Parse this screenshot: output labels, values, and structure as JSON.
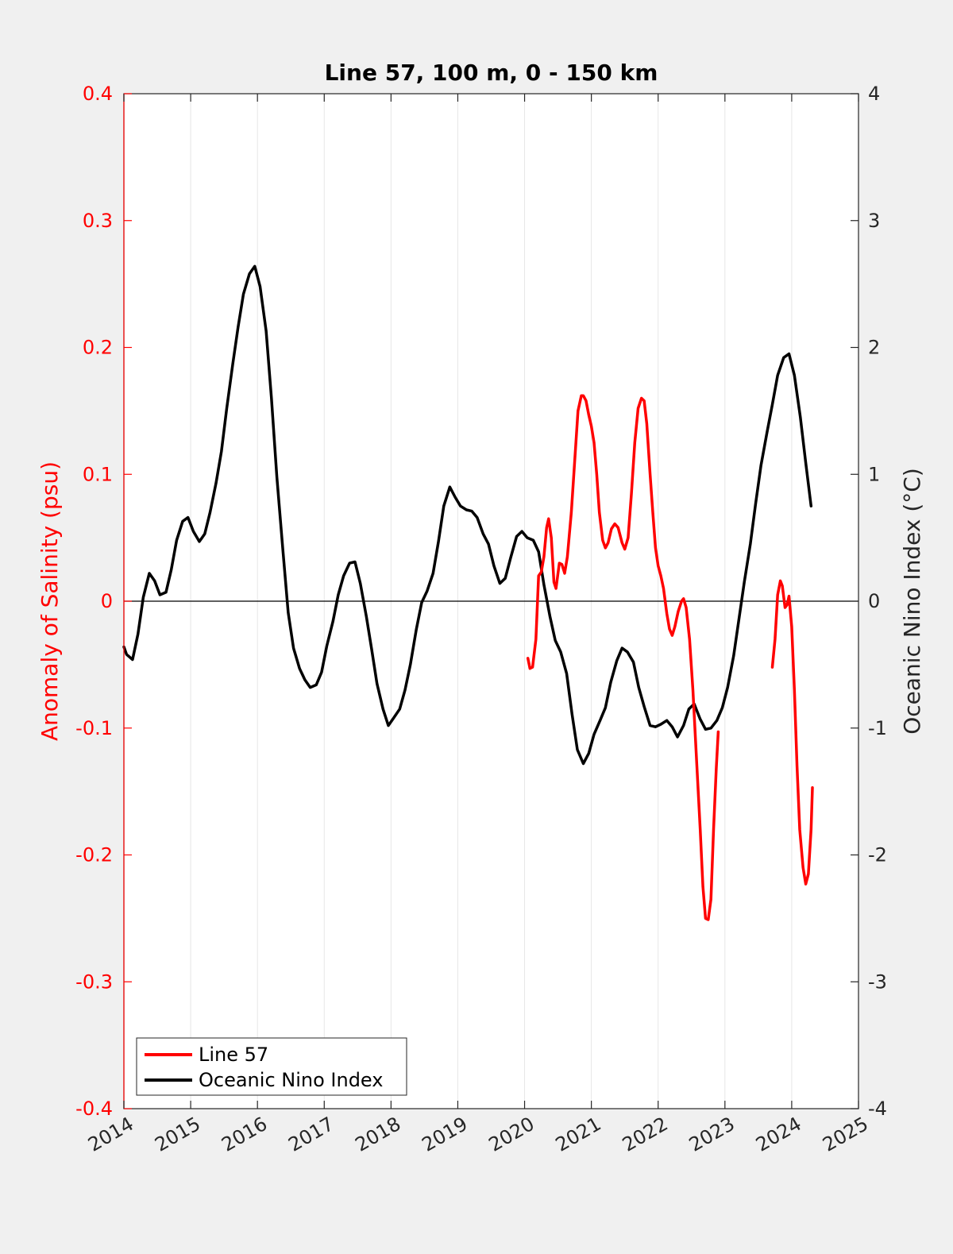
{
  "chart_data": {
    "type": "line",
    "title": "Line 57, 100 m, 0 - 150 km",
    "xlabel": "",
    "ylabel_left": "Anomaly of Salinity (psu)",
    "ylabel_right": "Oceanic Nino Index (°C)",
    "xlim": [
      2014,
      2025
    ],
    "ylim_left": [
      -0.4,
      0.4
    ],
    "ylim_right": [
      -4,
      4
    ],
    "x_ticks": [
      "2014",
      "2015",
      "2016",
      "2017",
      "2018",
      "2019",
      "2020",
      "2021",
      "2022",
      "2023",
      "2024",
      "2025"
    ],
    "y_left_ticks": [
      "0.4",
      "0.3",
      "0.2",
      "0.1",
      "0",
      "-0.1",
      "-0.2",
      "-0.3",
      "-0.4"
    ],
    "y_right_ticks": [
      "4",
      "3",
      "2",
      "1",
      "0",
      "-1",
      "-2",
      "-3",
      "-4"
    ],
    "grid": "vertical",
    "zero_line": true,
    "legend_position": "bottom-left",
    "colors": {
      "salinity": "#ff0000",
      "oni": "#000000",
      "left_axis": "#ff0000"
    },
    "series": [
      {
        "name": "Line 57",
        "axis": "left",
        "color": "#ff0000",
        "segments": [
          [
            [
              2020.05,
              -0.045
            ],
            [
              2020.08,
              -0.053
            ],
            [
              2020.12,
              -0.052
            ],
            [
              2020.17,
              -0.03
            ],
            [
              2020.21,
              0.02
            ],
            [
              2020.25,
              0.023
            ],
            [
              2020.29,
              0.035
            ],
            [
              2020.33,
              0.058
            ],
            [
              2020.36,
              0.065
            ],
            [
              2020.4,
              0.05
            ],
            [
              2020.44,
              0.015
            ],
            [
              2020.47,
              0.01
            ],
            [
              2020.52,
              0.03
            ],
            [
              2020.56,
              0.029
            ],
            [
              2020.6,
              0.022
            ],
            [
              2020.64,
              0.035
            ],
            [
              2020.7,
              0.07
            ],
            [
              2020.75,
              0.11
            ],
            [
              2020.8,
              0.15
            ],
            [
              2020.85,
              0.162
            ],
            [
              2020.88,
              0.162
            ],
            [
              2020.92,
              0.158
            ],
            [
              2020.96,
              0.147
            ],
            [
              2021.0,
              0.138
            ],
            [
              2021.04,
              0.125
            ],
            [
              2021.08,
              0.1
            ],
            [
              2021.12,
              0.07
            ],
            [
              2021.17,
              0.048
            ],
            [
              2021.21,
              0.042
            ],
            [
              2021.25,
              0.046
            ],
            [
              2021.3,
              0.057
            ],
            [
              2021.35,
              0.061
            ],
            [
              2021.4,
              0.058
            ],
            [
              2021.46,
              0.046
            ],
            [
              2021.5,
              0.041
            ],
            [
              2021.55,
              0.05
            ],
            [
              2021.6,
              0.085
            ],
            [
              2021.65,
              0.125
            ],
            [
              2021.7,
              0.152
            ],
            [
              2021.75,
              0.16
            ],
            [
              2021.79,
              0.158
            ],
            [
              2021.83,
              0.14
            ],
            [
              2021.88,
              0.1
            ],
            [
              2021.92,
              0.07
            ],
            [
              2021.96,
              0.042
            ],
            [
              2022.0,
              0.028
            ],
            [
              2022.04,
              0.02
            ],
            [
              2022.08,
              0.01
            ],
            [
              2022.13,
              -0.01
            ],
            [
              2022.17,
              -0.022
            ],
            [
              2022.21,
              -0.027
            ],
            [
              2022.25,
              -0.02
            ],
            [
              2022.3,
              -0.008
            ],
            [
              2022.35,
              0.0
            ],
            [
              2022.38,
              0.002
            ],
            [
              2022.42,
              -0.005
            ],
            [
              2022.47,
              -0.03
            ],
            [
              2022.52,
              -0.07
            ],
            [
              2022.58,
              -0.13
            ],
            [
              2022.63,
              -0.18
            ],
            [
              2022.67,
              -0.225
            ],
            [
              2022.71,
              -0.25
            ],
            [
              2022.75,
              -0.251
            ],
            [
              2022.79,
              -0.235
            ],
            [
              2022.83,
              -0.18
            ],
            [
              2022.87,
              -0.132
            ],
            [
              2022.9,
              -0.103
            ]
          ],
          [
            [
              2023.71,
              -0.052
            ],
            [
              2023.75,
              -0.03
            ],
            [
              2023.79,
              0.005
            ],
            [
              2023.83,
              0.016
            ],
            [
              2023.86,
              0.012
            ],
            [
              2023.9,
              -0.005
            ],
            [
              2023.93,
              -0.003
            ],
            [
              2023.96,
              0.004
            ],
            [
              2024.0,
              -0.02
            ],
            [
              2024.04,
              -0.07
            ],
            [
              2024.08,
              -0.13
            ],
            [
              2024.12,
              -0.18
            ],
            [
              2024.17,
              -0.21
            ],
            [
              2024.21,
              -0.223
            ],
            [
              2024.25,
              -0.215
            ],
            [
              2024.29,
              -0.18
            ],
            [
              2024.31,
              -0.147
            ]
          ]
        ]
      },
      {
        "name": "Oceanic Nino Index",
        "axis": "right",
        "color": "#000000",
        "segments": [
          [
            [
              2014.0,
              -0.36
            ],
            [
              2014.04,
              -0.42
            ],
            [
              2014.13,
              -0.46
            ],
            [
              2014.21,
              -0.26
            ],
            [
              2014.29,
              0.03
            ],
            [
              2014.38,
              0.22
            ],
            [
              2014.46,
              0.16
            ],
            [
              2014.54,
              0.05
            ],
            [
              2014.63,
              0.07
            ],
            [
              2014.71,
              0.25
            ],
            [
              2014.79,
              0.48
            ],
            [
              2014.88,
              0.63
            ],
            [
              2014.96,
              0.66
            ],
            [
              2015.04,
              0.55
            ],
            [
              2015.13,
              0.47
            ],
            [
              2015.21,
              0.53
            ],
            [
              2015.29,
              0.7
            ],
            [
              2015.38,
              0.93
            ],
            [
              2015.46,
              1.18
            ],
            [
              2015.54,
              1.52
            ],
            [
              2015.63,
              1.87
            ],
            [
              2015.71,
              2.16
            ],
            [
              2015.79,
              2.42
            ],
            [
              2015.88,
              2.58
            ],
            [
              2015.96,
              2.64
            ],
            [
              2016.04,
              2.48
            ],
            [
              2016.13,
              2.13
            ],
            [
              2016.21,
              1.6
            ],
            [
              2016.29,
              0.98
            ],
            [
              2016.38,
              0.41
            ],
            [
              2016.46,
              -0.09
            ],
            [
              2016.54,
              -0.37
            ],
            [
              2016.63,
              -0.53
            ],
            [
              2016.71,
              -0.62
            ],
            [
              2016.79,
              -0.68
            ],
            [
              2016.88,
              -0.66
            ],
            [
              2016.96,
              -0.56
            ],
            [
              2017.04,
              -0.35
            ],
            [
              2017.13,
              -0.16
            ],
            [
              2017.21,
              0.05
            ],
            [
              2017.29,
              0.2
            ],
            [
              2017.38,
              0.3
            ],
            [
              2017.46,
              0.31
            ],
            [
              2017.54,
              0.14
            ],
            [
              2017.63,
              -0.12
            ],
            [
              2017.71,
              -0.38
            ],
            [
              2017.79,
              -0.65
            ],
            [
              2017.88,
              -0.85
            ],
            [
              2017.96,
              -0.98
            ],
            [
              2018.04,
              -0.92
            ],
            [
              2018.13,
              -0.85
            ],
            [
              2018.21,
              -0.7
            ],
            [
              2018.29,
              -0.5
            ],
            [
              2018.38,
              -0.22
            ],
            [
              2018.46,
              -0.01
            ],
            [
              2018.54,
              0.08
            ],
            [
              2018.63,
              0.22
            ],
            [
              2018.71,
              0.47
            ],
            [
              2018.79,
              0.75
            ],
            [
              2018.88,
              0.9
            ],
            [
              2018.96,
              0.82
            ],
            [
              2019.04,
              0.75
            ],
            [
              2019.13,
              0.72
            ],
            [
              2019.21,
              0.71
            ],
            [
              2019.29,
              0.66
            ],
            [
              2019.38,
              0.53
            ],
            [
              2019.46,
              0.45
            ],
            [
              2019.54,
              0.28
            ],
            [
              2019.63,
              0.14
            ],
            [
              2019.71,
              0.18
            ],
            [
              2019.79,
              0.34
            ],
            [
              2019.88,
              0.51
            ],
            [
              2019.96,
              0.55
            ],
            [
              2020.04,
              0.5
            ],
            [
              2020.13,
              0.48
            ],
            [
              2020.21,
              0.39
            ],
            [
              2020.29,
              0.13
            ],
            [
              2020.38,
              -0.12
            ],
            [
              2020.46,
              -0.31
            ],
            [
              2020.54,
              -0.4
            ],
            [
              2020.63,
              -0.57
            ],
            [
              2020.71,
              -0.89
            ],
            [
              2020.79,
              -1.17
            ],
            [
              2020.88,
              -1.28
            ],
            [
              2020.96,
              -1.2
            ],
            [
              2021.04,
              -1.05
            ],
            [
              2021.13,
              -0.94
            ],
            [
              2021.21,
              -0.84
            ],
            [
              2021.29,
              -0.64
            ],
            [
              2021.38,
              -0.47
            ],
            [
              2021.46,
              -0.37
            ],
            [
              2021.54,
              -0.4
            ],
            [
              2021.63,
              -0.48
            ],
            [
              2021.71,
              -0.68
            ],
            [
              2021.79,
              -0.83
            ],
            [
              2021.88,
              -0.98
            ],
            [
              2021.96,
              -0.99
            ],
            [
              2022.04,
              -0.97
            ],
            [
              2022.13,
              -0.94
            ],
            [
              2022.21,
              -0.99
            ],
            [
              2022.29,
              -1.07
            ],
            [
              2022.38,
              -0.98
            ],
            [
              2022.46,
              -0.85
            ],
            [
              2022.54,
              -0.81
            ],
            [
              2022.63,
              -0.93
            ],
            [
              2022.71,
              -1.01
            ],
            [
              2022.79,
              -1.0
            ],
            [
              2022.88,
              -0.94
            ],
            [
              2022.96,
              -0.84
            ],
            [
              2023.04,
              -0.68
            ],
            [
              2023.13,
              -0.43
            ],
            [
              2023.21,
              -0.14
            ],
            [
              2023.29,
              0.15
            ],
            [
              2023.38,
              0.45
            ],
            [
              2023.46,
              0.77
            ],
            [
              2023.54,
              1.07
            ],
            [
              2023.63,
              1.33
            ],
            [
              2023.71,
              1.55
            ],
            [
              2023.79,
              1.78
            ],
            [
              2023.88,
              1.92
            ],
            [
              2023.96,
              1.95
            ],
            [
              2024.04,
              1.78
            ],
            [
              2024.13,
              1.45
            ],
            [
              2024.21,
              1.09
            ],
            [
              2024.29,
              0.75
            ]
          ]
        ]
      }
    ]
  }
}
